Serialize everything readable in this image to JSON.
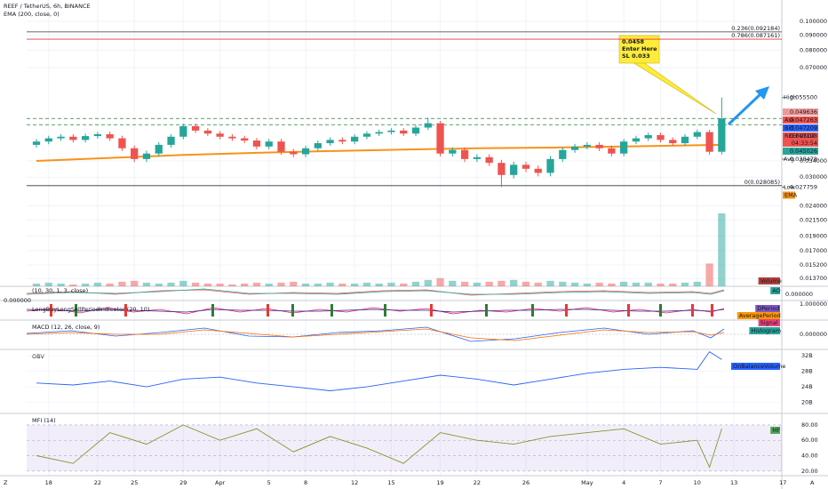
{
  "header": {
    "symbol": "REEF / TetherUS, 6h, BINANCE",
    "indicator": "EMA (200, close, 0)"
  },
  "chart_data": {
    "type": "candlestick",
    "log": true,
    "ylim": [
      0.0129,
      0.114
    ],
    "yticks": [
      {
        "value": 0.1,
        "label": "0.100000"
      },
      {
        "value": 0.09,
        "label": "0.090000"
      },
      {
        "value": 0.08,
        "label": "0.080000"
      },
      {
        "value": 0.07,
        "label": "0.070000"
      },
      {
        "value": 0.034,
        "label": "0.034000"
      },
      {
        "value": 0.03,
        "label": "0.030000"
      },
      {
        "value": 0.024,
        "label": "0.024000"
      },
      {
        "value": 0.0215,
        "label": "0.021500"
      },
      {
        "value": 0.019,
        "label": "0.019000"
      },
      {
        "value": 0.017,
        "label": "0.017000"
      },
      {
        "value": 0.0152,
        "label": "0.015200"
      },
      {
        "value": 0.0137,
        "label": "0.013700"
      }
    ],
    "xlim": [
      -1.8,
      61
    ],
    "xticks": [
      {
        "value": 0,
        "label": "18"
      },
      {
        "value": 4,
        "label": "22"
      },
      {
        "value": 7,
        "label": "25"
      },
      {
        "value": 11,
        "label": "29"
      },
      {
        "value": 14,
        "label": "Apr"
      },
      {
        "value": 18,
        "label": "5"
      },
      {
        "value": 21,
        "label": "8"
      },
      {
        "value": 25,
        "label": "12"
      },
      {
        "value": 28,
        "label": "15"
      },
      {
        "value": 32,
        "label": "19"
      },
      {
        "value": 35,
        "label": "22"
      },
      {
        "value": 39,
        "label": "26"
      },
      {
        "value": 44,
        "label": "May"
      },
      {
        "value": 47,
        "label": "4"
      },
      {
        "value": 50,
        "label": "7"
      },
      {
        "value": 53,
        "label": "10"
      },
      {
        "value": 56,
        "label": "13"
      },
      {
        "value": 60,
        "label": "17"
      }
    ],
    "x": [
      -1,
      0,
      1,
      2,
      3,
      4,
      5,
      6,
      7,
      8,
      9,
      10,
      11,
      12,
      13,
      14,
      15,
      16,
      17,
      18,
      19,
      20,
      21,
      22,
      23,
      24,
      25,
      26,
      27,
      28,
      29,
      30,
      31,
      32,
      33,
      34,
      35,
      36,
      37,
      38,
      39,
      40,
      41,
      42,
      43,
      44,
      45,
      46,
      47,
      48,
      49,
      50,
      51,
      52,
      53,
      54,
      55
    ],
    "open": [
      0.0385,
      0.0395,
      0.0405,
      0.041,
      0.04,
      0.0412,
      0.0418,
      0.0405,
      0.0375,
      0.0345,
      0.036,
      0.0385,
      0.041,
      0.0445,
      0.043,
      0.042,
      0.041,
      0.0405,
      0.0398,
      0.038,
      0.0395,
      0.0365,
      0.0358,
      0.0375,
      0.039,
      0.04,
      0.0395,
      0.041,
      0.042,
      0.0425,
      0.043,
      0.042,
      0.044,
      0.0455,
      0.036,
      0.037,
      0.0345,
      0.035,
      0.0335,
      0.0305,
      0.033,
      0.032,
      0.031,
      0.0345,
      0.037,
      0.038,
      0.0385,
      0.0375,
      0.036,
      0.0395,
      0.0405,
      0.0415,
      0.04,
      0.039,
      0.041,
      0.0425,
      0.0365
    ],
    "high": [
      0.0403,
      0.0413,
      0.0418,
      0.0418,
      0.042,
      0.0426,
      0.0426,
      0.0413,
      0.0383,
      0.0368,
      0.0393,
      0.0418,
      0.0453,
      0.0453,
      0.0438,
      0.0428,
      0.0418,
      0.0413,
      0.0406,
      0.0403,
      0.0403,
      0.0373,
      0.0383,
      0.0398,
      0.0408,
      0.0408,
      0.0418,
      0.0428,
      0.0433,
      0.0438,
      0.0438,
      0.0448,
      0.0475,
      0.0463,
      0.0378,
      0.0378,
      0.0358,
      0.0358,
      0.0343,
      0.0338,
      0.0338,
      0.0328,
      0.0353,
      0.0378,
      0.0388,
      0.0393,
      0.0393,
      0.0383,
      0.0403,
      0.0413,
      0.0423,
      0.0423,
      0.0408,
      0.0418,
      0.0433,
      0.0433,
      0.0555
    ],
    "low": [
      0.0377,
      0.0387,
      0.0397,
      0.0392,
      0.0392,
      0.0404,
      0.0397,
      0.0367,
      0.0337,
      0.0337,
      0.0352,
      0.0377,
      0.0402,
      0.0422,
      0.0412,
      0.0402,
      0.0397,
      0.039,
      0.0372,
      0.0372,
      0.0357,
      0.035,
      0.035,
      0.0367,
      0.0382,
      0.0387,
      0.0387,
      0.0402,
      0.0412,
      0.0417,
      0.0412,
      0.0412,
      0.0432,
      0.0352,
      0.0352,
      0.0337,
      0.0337,
      0.0327,
      0.0278,
      0.0297,
      0.0312,
      0.0302,
      0.0302,
      0.0337,
      0.0362,
      0.0372,
      0.0367,
      0.0352,
      0.0352,
      0.0387,
      0.0397,
      0.0392,
      0.0382,
      0.0382,
      0.0402,
      0.0357,
      0.0357
    ],
    "close": [
      0.0395,
      0.0405,
      0.041,
      0.04,
      0.0412,
      0.0418,
      0.0405,
      0.0375,
      0.0345,
      0.036,
      0.0385,
      0.041,
      0.0445,
      0.043,
      0.042,
      0.041,
      0.0405,
      0.0398,
      0.038,
      0.0395,
      0.0365,
      0.0358,
      0.0375,
      0.039,
      0.04,
      0.0395,
      0.041,
      0.042,
      0.0425,
      0.043,
      0.042,
      0.044,
      0.0455,
      0.036,
      0.037,
      0.0345,
      0.035,
      0.0335,
      0.0305,
      0.033,
      0.032,
      0.031,
      0.0345,
      0.037,
      0.038,
      0.0385,
      0.0375,
      0.036,
      0.0395,
      0.0405,
      0.0415,
      0.04,
      0.039,
      0.041,
      0.0425,
      0.0365,
      0.0472
    ],
    "up_color": "#26a69a",
    "down_color": "#ef5350",
    "ema": {
      "x": [
        -1,
        5,
        11,
        17,
        23,
        29,
        35,
        41,
        47,
        55
      ],
      "values": [
        0.034,
        0.0348,
        0.0356,
        0.0362,
        0.0367,
        0.0371,
        0.0375,
        0.0377,
        0.038,
        0.0385
      ],
      "color": "#f7931a"
    },
    "volume": {
      "values": [
        3,
        4,
        3,
        2,
        3,
        4,
        3,
        5,
        6,
        4,
        3,
        4,
        6,
        4,
        3,
        3,
        2,
        3,
        4,
        3,
        4,
        5,
        3,
        3,
        4,
        3,
        3,
        4,
        3,
        4,
        3,
        5,
        7,
        9,
        6,
        5,
        4,
        5,
        6,
        7,
        5,
        4,
        6,
        5,
        4,
        3,
        4,
        3,
        5,
        4,
        4,
        3,
        3,
        4,
        5,
        25,
        80
      ],
      "tag": "Volume"
    },
    "levels": [
      {
        "label": "0.236(0.092184)",
        "value": 0.092184,
        "color": "#333333"
      },
      {
        "label": "0.786(0.087161)",
        "value": 0.087161,
        "color": "#e53935"
      },
      {
        "label": "0(0.028085)",
        "value": 0.028085,
        "color": "#333333"
      }
    ],
    "dashed_levels": [
      0.0472,
      0.045
    ],
    "price_tags": [
      {
        "name": "High",
        "value": 0.0555,
        "label": "0.055500"
      },
      {
        "value": 0.049636,
        "label": "0.049636",
        "color": "#ef9a9a"
      },
      {
        "name": "Ask",
        "value": 0.047263,
        "label": "0.047263",
        "color": "#ef5350"
      },
      {
        "name": "Bid",
        "value": 0.047209,
        "label": "0.047209",
        "color": "#2962ff"
      },
      {
        "name": "REEFUSDT",
        "value": 0.047198,
        "label": "0.047198",
        "color": "#ef5350",
        "timer": "04:33:54"
      },
      {
        "value": 0.045026,
        "label": "0.045026",
        "color": "#26a69a"
      },
      {
        "name": "Avg",
        "value": 0.038478,
        "label": "0.038478"
      },
      {
        "name": "Low",
        "value": 0.027759,
        "label": "0.027759"
      }
    ],
    "ema_tag": "EMA",
    "annotation": {
      "lines": [
        "0.0458",
        "Enter Here",
        "SL 0.033"
      ]
    }
  },
  "panels": {
    "ao": {
      "title": "(10, 30, 1, 3, close)",
      "tag": "AO",
      "tick": "0.000000",
      "left_value": "0.000000"
    },
    "longbuy": {
      "title": "LongBuyLongSellPeriodIndicator (20, 10)",
      "tick": "1.000000",
      "tags": [
        "DPeriod",
        "AveragePeriod",
        "Signal"
      ]
    },
    "macd": {
      "title": "MACD (12, 26, close, 9)",
      "tick": "0.000000",
      "tag": "Histogram"
    },
    "obv": {
      "title": "OBV",
      "tag": "OnBalanceVolume",
      "color": "#2962ff",
      "x": [
        -1,
        2,
        5,
        8,
        11,
        14,
        17,
        20,
        23,
        26,
        29,
        32,
        35,
        38,
        41,
        44,
        47,
        50,
        53,
        54,
        55
      ],
      "values": [
        25,
        24.5,
        25.5,
        24,
        26,
        26.5,
        25,
        24,
        23,
        24,
        25.5,
        27,
        26,
        24.5,
        26,
        27.5,
        28.5,
        29,
        28.5,
        33,
        31
      ],
      "ylim": [
        17.2,
        33.6
      ],
      "yticks": [
        {
          "value": 32,
          "label": "32B"
        },
        {
          "value": 28,
          "label": "28B"
        },
        {
          "value": 24,
          "label": "24B"
        },
        {
          "value": 20,
          "label": "20B"
        }
      ]
    },
    "mfi": {
      "title": "MFI (14)",
      "tag": "MF",
      "color": "#7c9a2e",
      "band": [
        20,
        80
      ],
      "x": [
        -1,
        2,
        5,
        8,
        11,
        14,
        17,
        20,
        23,
        26,
        29,
        32,
        35,
        38,
        41,
        44,
        47,
        50,
        53,
        54,
        55
      ],
      "values": [
        40,
        30,
        70,
        55,
        80,
        60,
        75,
        45,
        65,
        50,
        30,
        70,
        60,
        55,
        65,
        70,
        75,
        55,
        60,
        25,
        75
      ],
      "ylim": [
        14,
        95
      ],
      "yticks": [
        {
          "value": 80,
          "label": "80.00"
        },
        {
          "value": 60,
          "label": "60.00"
        },
        {
          "value": 40,
          "label": "40.00"
        },
        {
          "value": 20,
          "label": "20.00"
        }
      ]
    }
  }
}
